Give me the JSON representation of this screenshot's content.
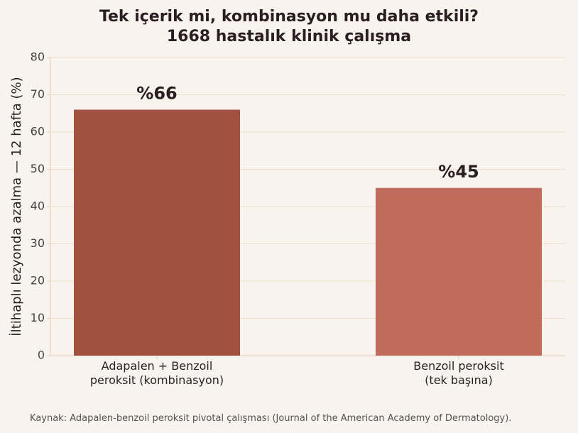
{
  "chart_data": {
    "type": "bar",
    "title": "Tek içerik mi, kombinasyon mu daha etkili?\n1668 hastalık klinik çalışma",
    "ylabel": "İltihaplı lezyonda azalma — 12 hafta (%)",
    "categories": [
      "Adapalen + Benzoil\nperoksit (kombinasyon)",
      "Benzoil peroksit\n(tek başına)"
    ],
    "values": [
      66,
      45
    ],
    "value_labels": [
      "%66",
      "%45"
    ],
    "colors": [
      "#a0513f",
      "#c06b5b"
    ],
    "ylim": [
      0,
      80
    ],
    "yticks": [
      0,
      10,
      20,
      30,
      40,
      50,
      60,
      70,
      80
    ],
    "grid": true,
    "source": "Kaynak: Adapalen-benzoil peroksit pivotal çalışması (Journal of the American Academy of Dermatology)."
  }
}
